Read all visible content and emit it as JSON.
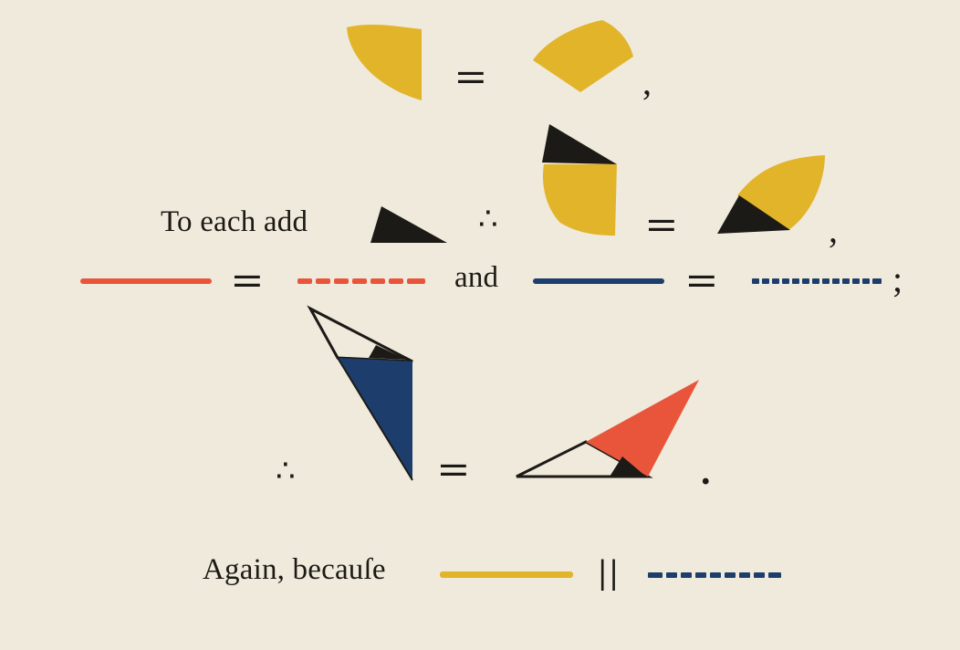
{
  "page": {
    "colors": {
      "paper": "#efeadb",
      "ink": "#1c1a16",
      "yellow": "#e2b42a",
      "red": "#e8553a",
      "blue": "#1d3e6c"
    },
    "line1": {
      "equals_symbol": "=",
      "comma": ","
    },
    "line2": {
      "prefix_text": "To each add",
      "therefore_symbol": "∴",
      "equals_symbol": "=",
      "comma": ","
    },
    "line3": {
      "equals_symbol": "=",
      "conjunction": "and",
      "equals_symbol_2": "=",
      "semicolon": ";"
    },
    "line4": {
      "therefore_symbol": "∴",
      "equals_symbol": "=",
      "period": "."
    },
    "line5": {
      "prefix_text": "Again, becauſe",
      "parallel_symbol": "||"
    }
  }
}
